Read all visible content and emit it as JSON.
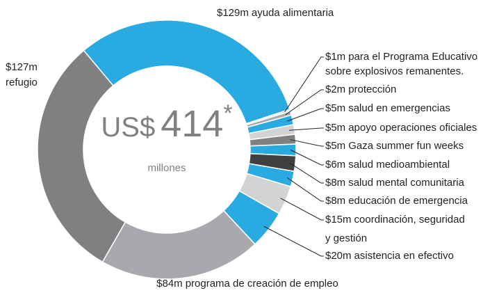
{
  "chart_data": {
    "type": "donut",
    "center_label": {
      "prefix": "US$",
      "value": 414,
      "suffix": "*",
      "unit": "millones"
    },
    "categories": [
      [
        "ayuda alimentaria"
      ],
      [
        "para el Programa Educativo",
        "sobre explosivos remanentes."
      ],
      [
        "protección"
      ],
      [
        "salud en emergencias"
      ],
      [
        "apoyo operaciones oficiales"
      ],
      [
        "Gaza summer fun weeks"
      ],
      [
        "salud medioambiental"
      ],
      [
        "salud mental comunitaria"
      ],
      [
        "educación de emergencia"
      ],
      [
        "coordinación, seguridad",
        "y gestión"
      ],
      [
        "asistencia en efectivo"
      ],
      [
        "programa de creación de empleo"
      ],
      [
        "refugio"
      ]
    ],
    "values": [
      129,
      1,
      2,
      5,
      5,
      5,
      6,
      8,
      8,
      15,
      20,
      84,
      127
    ],
    "value_labels": [
      "$129m",
      "$1m",
      "$2m",
      "$5m",
      "$5m",
      "$5m",
      "$6m",
      "$8m",
      "$8m",
      "$15m",
      "$20m",
      "$84m",
      "$127m"
    ],
    "colors": [
      "#29abe2",
      "#e6e7e8",
      "#a7a9ac",
      "#29abe2",
      "#d1d3d4",
      "#808083",
      "#29abe2",
      "#404041",
      "#29abe2",
      "#d1d3d4",
      "#29abe2",
      "#a7a9ac",
      "#808083"
    ]
  }
}
